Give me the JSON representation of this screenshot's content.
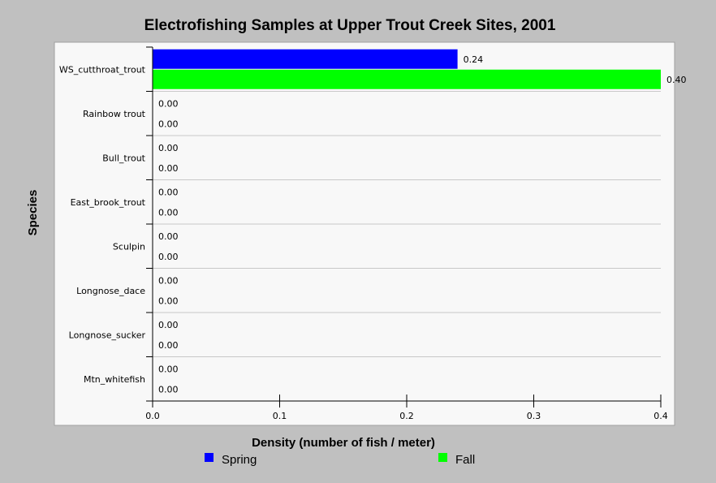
{
  "chart_data": {
    "type": "bar",
    "orientation": "horizontal",
    "title": "Electrofishing Samples at Upper Trout Creek Sites, 2001",
    "xlabel": "Density (number of fish / meter)",
    "ylabel": "Species",
    "xlim": [
      0,
      0.4
    ],
    "x_ticks": [
      "0.0",
      "0.1",
      "0.2",
      "0.3",
      "0.4"
    ],
    "categories": [
      "WS_cutthroat_trout",
      "Rainbow trout",
      "Bull_trout",
      "East_brook_trout",
      "Sculpin",
      "Longnose_dace",
      "Longnose_sucker",
      "Mtn_whitefish"
    ],
    "series": [
      {
        "name": "Spring",
        "color": "#0000ff",
        "values": [
          0.24,
          0.0,
          0.0,
          0.0,
          0.0,
          0.0,
          0.0,
          0.0
        ],
        "labels": [
          "0.24",
          "0.00",
          "0.00",
          "0.00",
          "0.00",
          "0.00",
          "0.00",
          "0.00"
        ]
      },
      {
        "name": "Fall",
        "color": "#00ff00",
        "values": [
          0.4,
          0.0,
          0.0,
          0.0,
          0.0,
          0.0,
          0.0,
          0.0
        ],
        "labels": [
          "0.40",
          "0.00",
          "0.00",
          "0.00",
          "0.00",
          "0.00",
          "0.00",
          "0.00"
        ]
      }
    ],
    "grid": {
      "horizontal_separators": true,
      "vertical": false
    },
    "legend_position": "bottom",
    "colors": {
      "background": "#c0c0c0",
      "plot_background": "#f8f8f8",
      "separator": "#c8c8c8"
    }
  }
}
